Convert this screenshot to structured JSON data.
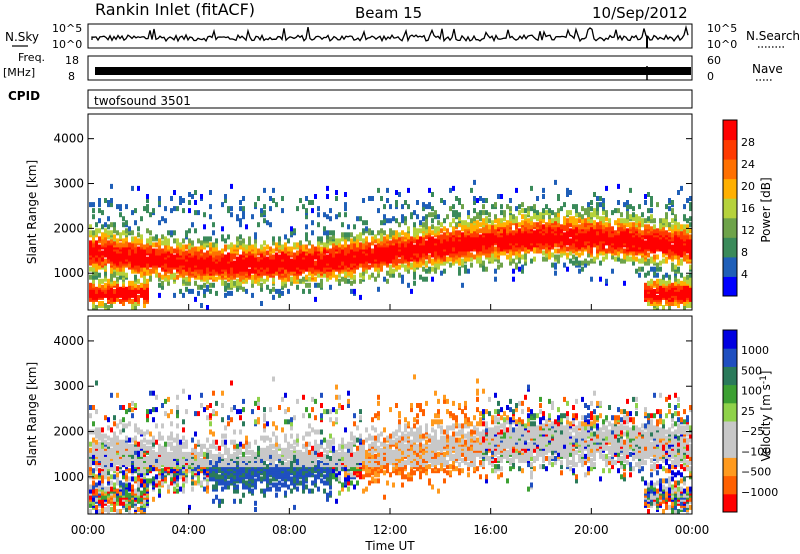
{
  "header": {
    "station": "Rankin Inlet (fitACF)",
    "beam": "Beam 15",
    "date": "10/Sep/2012"
  },
  "strip_labels": {
    "nsky": "N.Sky",
    "nsearch": "N.Search",
    "freq_top": "Freq.",
    "freq_unit": "[MHz]",
    "nave": "Nave",
    "cpid": "CPID",
    "cpid_value": "twofsound 3501",
    "noise_ticks": [
      "10^5",
      "10^0"
    ],
    "freq_ticks": [
      "18",
      "8"
    ],
    "nave_ticks": [
      "60",
      "0"
    ]
  },
  "colors": {
    "power": [
      "#0000ff",
      "#1f5fb8",
      "#3a8a5a",
      "#6ea34a",
      "#b6d23c",
      "#ffb000",
      "#ff7000",
      "#ff3a00",
      "#ff0000"
    ],
    "velocity": [
      "#ff0000",
      "#ff6000",
      "#ff9a1e",
      "#c8c8c8",
      "#c8c8c8",
      "#8fd24a",
      "#3ca032",
      "#2a7a5a",
      "#1f4fc0",
      "#0000e0"
    ]
  },
  "chart_data": [
    {
      "type": "heatmap",
      "name": "Power",
      "ylabel": "Slant Range [km]",
      "xlabel": "",
      "colorbar_label": "Power [dB]",
      "colorbar_ticks": [
        "28",
        "24",
        "20",
        "16",
        "12",
        "8",
        "4"
      ],
      "x_ticks": [
        "00:00",
        "04:00",
        "08:00",
        "12:00",
        "16:00",
        "20:00",
        "00:00"
      ],
      "y_ticks": [
        "4000",
        "3000",
        "2000",
        "1000"
      ],
      "ylim": [
        180,
        4550
      ]
    },
    {
      "type": "heatmap",
      "name": "Velocity",
      "ylabel": "Slant Range [km]",
      "xlabel": "Time UT",
      "colorbar_label": "Velocity [m s^-1]",
      "colorbar_ticks": [
        "1000",
        "500",
        "100",
        "25",
        "−25",
        "−100",
        "−500",
        "−1000"
      ],
      "x_ticks": [
        "00:00",
        "04:00",
        "08:00",
        "12:00",
        "16:00",
        "20:00",
        "00:00"
      ],
      "y_ticks": [
        "4000",
        "3000",
        "2000",
        "1000"
      ],
      "ylim": [
        180,
        4550
      ]
    }
  ]
}
